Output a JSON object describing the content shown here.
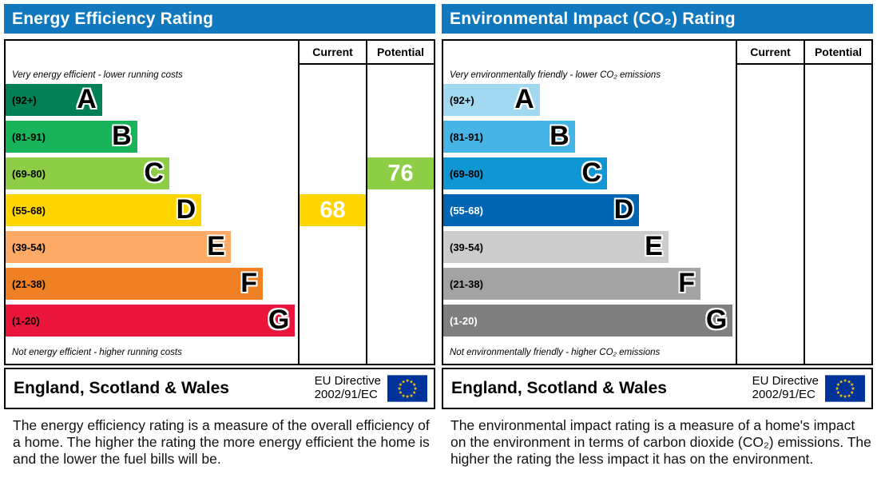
{
  "theme": {
    "header_bg": "#1278be",
    "header_text": "#ffffff",
    "border": "#000000",
    "eu_flag_bg": "#003399",
    "eu_flag_star": "#ffcc00"
  },
  "chart_data": [
    {
      "type": "bar",
      "subtype": "epc-rating-bands",
      "title": "Energy Efficiency Rating",
      "columns": [
        "Current",
        "Potential"
      ],
      "top_note": "Very energy efficient - lower running costs",
      "bottom_note": "Not energy efficient - higher running costs",
      "scale": [
        1,
        100
      ],
      "bands": [
        {
          "letter": "A",
          "range_label": "(92+)",
          "range": [
            92,
            100
          ],
          "color": "#008054",
          "label_color": "#000000",
          "width_pct": 33
        },
        {
          "letter": "B",
          "range_label": "(81-91)",
          "range": [
            81,
            91
          ],
          "color": "#19b459",
          "label_color": "#000000",
          "width_pct": 45
        },
        {
          "letter": "C",
          "range_label": "(69-80)",
          "range": [
            69,
            80
          ],
          "color": "#8dce46",
          "label_color": "#000000",
          "width_pct": 56
        },
        {
          "letter": "D",
          "range_label": "(55-68)",
          "range": [
            55,
            68
          ],
          "color": "#ffd500",
          "label_color": "#000000",
          "width_pct": 67
        },
        {
          "letter": "E",
          "range_label": "(39-54)",
          "range": [
            39,
            54
          ],
          "color": "#fcaa65",
          "label_color": "#000000",
          "width_pct": 77
        },
        {
          "letter": "F",
          "range_label": "(21-38)",
          "range": [
            21,
            38
          ],
          "color": "#ef8023",
          "label_color": "#000000",
          "width_pct": 88
        },
        {
          "letter": "G",
          "range_label": "(1-20)",
          "range": [
            1,
            20
          ],
          "color": "#e9153b",
          "label_color": "#000000",
          "width_pct": 99
        }
      ],
      "current": {
        "value": 68,
        "band": "D",
        "band_index": 3,
        "color": "#ffd500"
      },
      "potential": {
        "value": 76,
        "band": "C",
        "band_index": 2,
        "color": "#8dce46"
      },
      "footer": {
        "region": "England, Scotland & Wales",
        "directive_line1": "EU Directive",
        "directive_line2": "2002/91/EC"
      },
      "description": "The energy efficiency rating is a measure of the overall efficiency of a home. The higher the rating the more energy efficient the home is and the lower the fuel bills will be."
    },
    {
      "type": "bar",
      "subtype": "epc-rating-bands",
      "title": "Environmental Impact (CO₂) Rating",
      "columns": [
        "Current",
        "Potential"
      ],
      "top_note": "Very environmentally friendly - lower CO₂ emissions",
      "bottom_note": "Not environmentally friendly - higher CO₂ emissions",
      "scale": [
        1,
        100
      ],
      "bands": [
        {
          "letter": "A",
          "range_label": "(92+)",
          "range": [
            92,
            100
          ],
          "color": "#a2d9f0",
          "label_color": "#000000",
          "width_pct": 33
        },
        {
          "letter": "B",
          "range_label": "(81-91)",
          "range": [
            81,
            91
          ],
          "color": "#46b5e6",
          "label_color": "#000000",
          "width_pct": 45
        },
        {
          "letter": "C",
          "range_label": "(69-80)",
          "range": [
            69,
            80
          ],
          "color": "#0f96d3",
          "label_color": "#000000",
          "width_pct": 56
        },
        {
          "letter": "D",
          "range_label": "(55-68)",
          "range": [
            55,
            68
          ],
          "color": "#0066b3",
          "label_color": "#ffffff",
          "width_pct": 67
        },
        {
          "letter": "E",
          "range_label": "(39-54)",
          "range": [
            39,
            54
          ],
          "color": "#cccccc",
          "label_color": "#000000",
          "width_pct": 77
        },
        {
          "letter": "F",
          "range_label": "(21-38)",
          "range": [
            21,
            38
          ],
          "color": "#a3a3a3",
          "label_color": "#000000",
          "width_pct": 88
        },
        {
          "letter": "G",
          "range_label": "(1-20)",
          "range": [
            1,
            20
          ],
          "color": "#7f7f7f",
          "label_color": "#ffffff",
          "width_pct": 99
        }
      ],
      "current": null,
      "potential": null,
      "footer": {
        "region": "England, Scotland & Wales",
        "directive_line1": "EU Directive",
        "directive_line2": "2002/91/EC"
      },
      "description": "The environmental impact rating is a measure of a home's impact on the environment in terms of carbon dioxide (CO₂) emissions. The higher the rating the less impact it has on the environment."
    }
  ]
}
